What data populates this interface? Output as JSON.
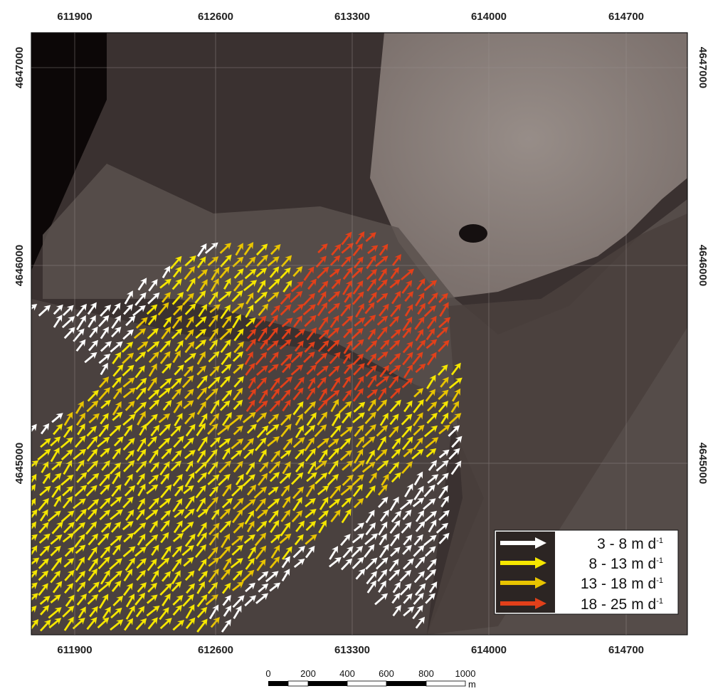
{
  "map": {
    "x_ticks": [
      "611900",
      "612600",
      "613300",
      "614000",
      "614700"
    ],
    "y_ticks": [
      "4647000",
      "4646000",
      "4645000"
    ]
  },
  "legend": {
    "items": [
      {
        "range": "3 -  8",
        "unit": "m d",
        "exp": "-1",
        "color": "#ffffff"
      },
      {
        "range": "8 - 13",
        "unit": "m d",
        "exp": "-1",
        "color": "#f5e600"
      },
      {
        "range": "13 - 18",
        "unit": "m d",
        "exp": "-1",
        "color": "#e8c400"
      },
      {
        "range": "18 - 25",
        "unit": "m d",
        "exp": "-1",
        "color": "#e2401a"
      }
    ]
  },
  "scale_bar": {
    "labels": [
      "0",
      "200",
      "400",
      "600",
      "800",
      "1000"
    ],
    "unit": "m"
  }
}
